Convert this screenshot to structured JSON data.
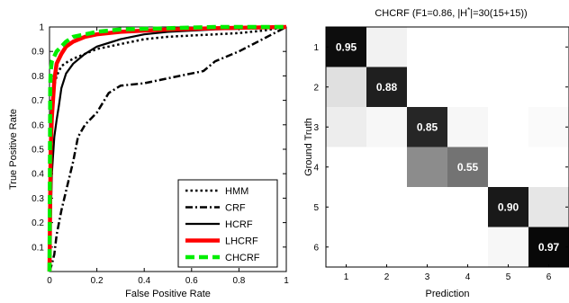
{
  "chart_data": [
    {
      "type": "line",
      "title": "",
      "xlabel": "False Positive Rate",
      "ylabel": "True Positive Rate",
      "xlim": [
        0,
        1
      ],
      "ylim": [
        0,
        1
      ],
      "xticks": [
        "0",
        "0.2",
        "0.4",
        "0.6",
        "0.8",
        "1"
      ],
      "yticks": [
        "0.1",
        "0.2",
        "0.3",
        "0.4",
        "0.5",
        "0.6",
        "0.7",
        "0.8",
        "0.9",
        "1"
      ],
      "legend_position": "bottom-right",
      "series": [
        {
          "name": "HMM",
          "color": "#000000",
          "style": "dotted",
          "x": [
            0,
            0.01,
            0.015,
            0.02,
            0.03,
            0.05,
            0.08,
            0.1,
            0.15,
            0.2,
            0.3,
            0.4,
            0.5,
            0.6,
            0.7,
            0.8,
            0.9,
            1.0
          ],
          "y": [
            0,
            0.55,
            0.7,
            0.76,
            0.8,
            0.84,
            0.86,
            0.87,
            0.89,
            0.91,
            0.93,
            0.95,
            0.96,
            0.965,
            0.97,
            0.975,
            0.985,
            1.0
          ]
        },
        {
          "name": "CRF",
          "color": "#000000",
          "style": "dashdot",
          "x": [
            0,
            0.01,
            0.02,
            0.03,
            0.05,
            0.08,
            0.1,
            0.12,
            0.15,
            0.2,
            0.25,
            0.3,
            0.4,
            0.5,
            0.55,
            0.6,
            0.65,
            0.7,
            0.8,
            0.9,
            1.0
          ],
          "y": [
            0,
            0.03,
            0.07,
            0.15,
            0.25,
            0.37,
            0.45,
            0.55,
            0.6,
            0.65,
            0.73,
            0.76,
            0.77,
            0.79,
            0.8,
            0.81,
            0.82,
            0.86,
            0.9,
            0.95,
            1.0
          ]
        },
        {
          "name": "HCRF",
          "color": "#000000",
          "style": "solid",
          "x": [
            0,
            0.01,
            0.02,
            0.03,
            0.04,
            0.05,
            0.07,
            0.1,
            0.15,
            0.2,
            0.3,
            0.4,
            0.5,
            0.7,
            0.9,
            1.0
          ],
          "y": [
            0,
            0.4,
            0.55,
            0.62,
            0.68,
            0.75,
            0.81,
            0.85,
            0.89,
            0.92,
            0.95,
            0.97,
            0.98,
            0.99,
            0.995,
            1.0
          ]
        },
        {
          "name": "LHCRF",
          "color": "#ff0000",
          "style": "solid",
          "x": [
            0,
            0.005,
            0.01,
            0.02,
            0.03,
            0.05,
            0.07,
            0.1,
            0.15,
            0.2,
            0.3,
            0.5,
            0.7,
            1.0
          ],
          "y": [
            0,
            0.5,
            0.63,
            0.78,
            0.85,
            0.89,
            0.92,
            0.94,
            0.96,
            0.97,
            0.98,
            0.99,
            0.995,
            1.0
          ]
        },
        {
          "name": "CHCRF",
          "color": "#00ee00",
          "style": "dashed",
          "x": [
            0,
            0.003,
            0.005,
            0.01,
            0.02,
            0.03,
            0.05,
            0.07,
            0.1,
            0.15,
            0.2,
            0.3,
            0.5,
            0.7,
            1.0
          ],
          "y": [
            0,
            0.75,
            0.82,
            0.86,
            0.88,
            0.9,
            0.92,
            0.94,
            0.96,
            0.97,
            0.98,
            0.99,
            0.995,
            1.0,
            1.0
          ]
        }
      ]
    },
    {
      "type": "heatmap",
      "title": "CHCRF (F1=0.86, |H*|=30(15+15))",
      "xlabel": "Prediction",
      "ylabel": "Ground Truth",
      "categories": [
        "1",
        "2",
        "3",
        "4",
        "5",
        "6"
      ],
      "matrix": [
        [
          0.95,
          0.05,
          0.0,
          0.0,
          0.0,
          0.0
        ],
        [
          0.12,
          0.88,
          0.0,
          0.0,
          0.0,
          0.0
        ],
        [
          0.07,
          0.03,
          0.85,
          0.03,
          0.0,
          0.02
        ],
        [
          0.0,
          0.0,
          0.45,
          0.55,
          0.0,
          0.0
        ],
        [
          0.0,
          0.0,
          0.0,
          0.0,
          0.9,
          0.1
        ],
        [
          0.0,
          0.0,
          0.0,
          0.0,
          0.03,
          0.97
        ]
      ],
      "labels": [
        {
          "row": 0,
          "col": 0,
          "text": "0.95"
        },
        {
          "row": 1,
          "col": 1,
          "text": "0.88"
        },
        {
          "row": 2,
          "col": 2,
          "text": "0.85"
        },
        {
          "row": 3,
          "col": 3,
          "text": "0.55"
        },
        {
          "row": 4,
          "col": 4,
          "text": "0.90"
        },
        {
          "row": 5,
          "col": 5,
          "text": "0.97"
        }
      ]
    }
  ]
}
